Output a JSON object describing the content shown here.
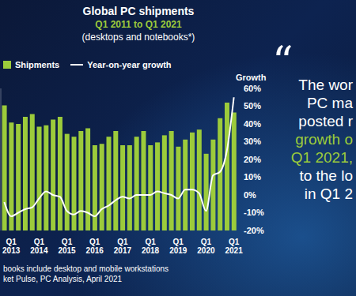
{
  "chart_data": {
    "type": "bar",
    "title": "Global PC shipments",
    "subtitle": [
      "Q1 2011 to Q1 2021",
      "(desktops and notebooks*)"
    ],
    "y2label": "Growth",
    "categories": [
      null,
      "Q1 2013",
      null,
      null,
      null,
      "Q1 2014",
      null,
      null,
      null,
      "Q1 2015",
      null,
      null,
      null,
      "Q1 2016",
      null,
      null,
      null,
      "Q1 2017",
      null,
      null,
      null,
      "Q1 2018",
      null,
      null,
      null,
      "Q1 2019",
      null,
      null,
      null,
      "Q1 2020",
      null,
      null,
      null,
      "Q1 2021"
    ],
    "series": [
      {
        "name": "Shipments",
        "type": "bar",
        "color": "#9ccb3b",
        "values": [
          88,
          76,
          75,
          80,
          82,
          73,
          74,
          78,
          80,
          68,
          66,
          70,
          72,
          60,
          61,
          66,
          70,
          60,
          60,
          66,
          70,
          60,
          62,
          67,
          70,
          59,
          64,
          69,
          71,
          54,
          64,
          79,
          90,
          83
        ]
      },
      {
        "name": "Year-on-year growth",
        "type": "line",
        "color": "#ffffff",
        "axis": "y2",
        "values": [
          -4,
          -12,
          -10,
          -8,
          -7,
          -2,
          2,
          0,
          -1,
          -9,
          -11,
          -9,
          -10,
          -12,
          -8,
          -6,
          -3,
          -1,
          -2,
          0,
          0,
          0,
          2,
          1,
          0,
          -2,
          3,
          3,
          1,
          -9,
          11,
          13,
          25,
          55
        ]
      }
    ],
    "ylim": [
      0,
      100
    ],
    "yticks": [],
    "y2lim": [
      -20,
      60
    ],
    "y2ticks": [
      {
        "value": -20,
        "label": "-20%"
      },
      {
        "value": -10,
        "label": "-10%"
      },
      {
        "value": 0,
        "label": "0%"
      },
      {
        "value": 10,
        "label": "10%"
      },
      {
        "value": 20,
        "label": "20%"
      },
      {
        "value": 30,
        "label": "30%"
      },
      {
        "value": 40,
        "label": "40%"
      },
      {
        "value": 50,
        "label": "50%"
      },
      {
        "value": 60,
        "label": "60%"
      }
    ],
    "grid": false,
    "legend": "top left",
    "subtitle_color": "#9ccb3b",
    "quote_mark": "“",
    "quote": [
      {
        "text": "The wor",
        "color": "#ffffff"
      },
      {
        "text": "PC ma",
        "color": "#ffffff"
      },
      {
        "text": "posted r",
        "color": "#ffffff"
      },
      {
        "text": "growth o",
        "color": "#9ccb3b"
      },
      {
        "text": "Q1 2021,",
        "color": "#9ccb3b"
      },
      {
        "text": "to the lo",
        "color": "#ffffff"
      },
      {
        "text": "in Q1 2",
        "color": "#ffffff"
      }
    ],
    "footnotes": [
      "books include desktop and mobile workstations",
      "ket Pulse, PC Analysis, April 2021"
    ]
  }
}
